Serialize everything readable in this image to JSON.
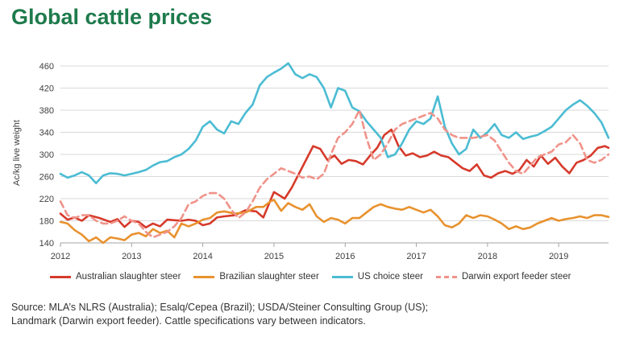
{
  "title": "Global cattle prices",
  "source_lines": [
    "Source: MLA’s NLRS (Australia); Esalq/Cepea (Brazil); USDA/Steiner Consulting Group (US);",
    "Landmark (Darwin export feeder). Cattle specifications vary between indicators."
  ],
  "chart_data": {
    "type": "line",
    "title": "Global cattle prices",
    "ylabel": "Ac/kg live weight",
    "xlabel": "",
    "ylim": [
      140,
      460
    ],
    "yticks": [
      140,
      180,
      220,
      260,
      300,
      340,
      380,
      420,
      460
    ],
    "xlim": [
      2012,
      2019.7
    ],
    "xticks": [
      2012,
      2013,
      2014,
      2015,
      2016,
      2017,
      2018,
      2019
    ],
    "grid": "horizontal",
    "legend_position": "bottom",
    "series": [
      {
        "name": "Australian slaughter steer",
        "color": "#d63a2b",
        "dash": false,
        "x": [
          2012.0,
          2012.1,
          2012.2,
          2012.3,
          2012.4,
          2012.55,
          2012.7,
          2012.8,
          2012.9,
          2013.0,
          2013.1,
          2013.2,
          2013.3,
          2013.4,
          2013.5,
          2013.6,
          2013.7,
          2013.8,
          2013.9,
          2014.0,
          2014.1,
          2014.2,
          2014.3,
          2014.45,
          2014.6,
          2014.75,
          2014.85,
          2014.95,
          2015.0,
          2015.05,
          2015.15,
          2015.25,
          2015.35,
          2015.45,
          2015.55,
          2015.65,
          2015.75,
          2015.85,
          2015.95,
          2016.05,
          2016.15,
          2016.25,
          2016.35,
          2016.45,
          2016.55,
          2016.65,
          2016.75,
          2016.85,
          2016.95,
          2017.05,
          2017.15,
          2017.25,
          2017.35,
          2017.45,
          2017.55,
          2017.65,
          2017.75,
          2017.85,
          2017.95,
          2018.05,
          2018.15,
          2018.25,
          2018.35,
          2018.45,
          2018.55,
          2018.65,
          2018.75,
          2018.85,
          2018.95,
          2019.05,
          2019.15,
          2019.25,
          2019.35,
          2019.45,
          2019.55,
          2019.65,
          2019.7
        ],
        "values": [
          193,
          182,
          186,
          180,
          190,
          185,
          178,
          183,
          169,
          180,
          178,
          168,
          175,
          170,
          182,
          181,
          180,
          182,
          180,
          172,
          175,
          186,
          188,
          190,
          199,
          197,
          186,
          217,
          232,
          228,
          220,
          240,
          265,
          290,
          315,
          310,
          290,
          298,
          283,
          290,
          288,
          282,
          298,
          312,
          335,
          345,
          315,
          298,
          302,
          295,
          298,
          305,
          298,
          295,
          285,
          275,
          270,
          282,
          262,
          258,
          266,
          270,
          265,
          272,
          290,
          278,
          298,
          283,
          294,
          278,
          266,
          285,
          290,
          298,
          312,
          315,
          312
        ]
      },
      {
        "name": "Brazilian slaughter steer",
        "color": "#e8922e",
        "dash": false,
        "x": [
          2012.0,
          2012.1,
          2012.2,
          2012.3,
          2012.4,
          2012.5,
          2012.6,
          2012.7,
          2012.8,
          2012.9,
          2013.0,
          2013.1,
          2013.2,
          2013.3,
          2013.4,
          2013.5,
          2013.6,
          2013.7,
          2013.8,
          2013.9,
          2014.0,
          2014.1,
          2014.2,
          2014.3,
          2014.45,
          2014.6,
          2014.75,
          2014.85,
          2014.95,
          2015.0,
          2015.1,
          2015.2,
          2015.3,
          2015.4,
          2015.5,
          2015.6,
          2015.7,
          2015.8,
          2015.9,
          2016.0,
          2016.1,
          2016.2,
          2016.3,
          2016.4,
          2016.5,
          2016.6,
          2016.7,
          2016.8,
          2016.9,
          2017.0,
          2017.1,
          2017.2,
          2017.3,
          2017.4,
          2017.5,
          2017.6,
          2017.7,
          2017.8,
          2017.9,
          2018.0,
          2018.1,
          2018.2,
          2018.3,
          2018.4,
          2018.5,
          2018.6,
          2018.7,
          2018.8,
          2018.9,
          2019.0,
          2019.1,
          2019.2,
          2019.3,
          2019.4,
          2019.5,
          2019.6,
          2019.7
        ],
        "values": [
          178,
          175,
          163,
          155,
          143,
          150,
          140,
          150,
          148,
          145,
          155,
          158,
          152,
          165,
          158,
          162,
          150,
          175,
          170,
          175,
          182,
          185,
          195,
          197,
          193,
          195,
          205,
          205,
          215,
          218,
          198,
          212,
          205,
          200,
          210,
          188,
          178,
          185,
          182,
          175,
          185,
          185,
          195,
          205,
          210,
          205,
          202,
          200,
          205,
          200,
          195,
          200,
          188,
          172,
          168,
          175,
          190,
          185,
          190,
          188,
          182,
          175,
          165,
          170,
          165,
          168,
          175,
          180,
          185,
          180,
          183,
          185,
          188,
          185,
          190,
          190,
          187
        ]
      },
      {
        "name": "US choice steer",
        "color": "#4bbcd3",
        "dash": false,
        "x": [
          2012.0,
          2012.1,
          2012.2,
          2012.3,
          2012.4,
          2012.5,
          2012.6,
          2012.7,
          2012.8,
          2012.9,
          2013.0,
          2013.1,
          2013.2,
          2013.3,
          2013.4,
          2013.5,
          2013.6,
          2013.7,
          2013.8,
          2013.9,
          2014.0,
          2014.1,
          2014.2,
          2014.3,
          2014.4,
          2014.5,
          2014.6,
          2014.7,
          2014.8,
          2014.9,
          2015.0,
          2015.1,
          2015.2,
          2015.3,
          2015.4,
          2015.5,
          2015.6,
          2015.7,
          2015.8,
          2015.9,
          2016.0,
          2016.1,
          2016.2,
          2016.3,
          2016.4,
          2016.5,
          2016.6,
          2016.7,
          2016.8,
          2016.9,
          2017.0,
          2017.1,
          2017.2,
          2017.3,
          2017.4,
          2017.5,
          2017.6,
          2017.7,
          2017.8,
          2017.9,
          2018.0,
          2018.1,
          2018.2,
          2018.3,
          2018.4,
          2018.5,
          2018.6,
          2018.7,
          2018.8,
          2018.9,
          2019.0,
          2019.1,
          2019.2,
          2019.3,
          2019.4,
          2019.5,
          2019.6,
          2019.7
        ],
        "values": [
          265,
          258,
          262,
          268,
          262,
          248,
          262,
          266,
          265,
          262,
          265,
          268,
          272,
          280,
          286,
          288,
          295,
          300,
          310,
          325,
          350,
          360,
          345,
          338,
          360,
          355,
          375,
          390,
          425,
          440,
          448,
          455,
          465,
          445,
          438,
          445,
          440,
          420,
          385,
          420,
          415,
          385,
          378,
          360,
          345,
          330,
          295,
          300,
          320,
          345,
          360,
          355,
          365,
          405,
          350,
          320,
          300,
          310,
          345,
          330,
          340,
          355,
          335,
          330,
          340,
          328,
          332,
          335,
          342,
          350,
          365,
          380,
          390,
          398,
          388,
          375,
          358,
          330
        ]
      },
      {
        "name": "Darwin export feeder steer",
        "color": "#f0938a",
        "dash": true,
        "x": [
          2012.0,
          2012.1,
          2012.2,
          2012.3,
          2012.4,
          2012.5,
          2012.6,
          2012.7,
          2012.8,
          2012.9,
          2013.0,
          2013.1,
          2013.2,
          2013.3,
          2013.4,
          2013.5,
          2013.6,
          2013.7,
          2013.8,
          2013.9,
          2014.0,
          2014.1,
          2014.2,
          2014.3,
          2014.4,
          2014.5,
          2014.6,
          2014.7,
          2014.8,
          2014.9,
          2015.0,
          2015.1,
          2015.2,
          2015.3,
          2015.4,
          2015.5,
          2015.6,
          2015.7,
          2015.8,
          2015.9,
          2016.0,
          2016.1,
          2016.2,
          2016.3,
          2016.4,
          2016.5,
          2016.6,
          2016.7,
          2016.8,
          2016.9,
          2017.0,
          2017.1,
          2017.2,
          2017.3,
          2017.4,
          2017.5,
          2017.6,
          2017.7,
          2017.8,
          2017.9,
          2018.0,
          2018.1,
          2018.2,
          2018.3,
          2018.4,
          2018.5,
          2018.6,
          2018.7,
          2018.8,
          2018.9,
          2019.0,
          2019.1,
          2019.2,
          2019.3,
          2019.4,
          2019.5,
          2019.6,
          2019.7
        ],
        "values": [
          215,
          190,
          185,
          190,
          190,
          180,
          175,
          175,
          180,
          188,
          180,
          175,
          160,
          150,
          155,
          160,
          170,
          185,
          210,
          215,
          225,
          230,
          230,
          220,
          200,
          185,
          195,
          215,
          240,
          255,
          265,
          275,
          270,
          265,
          258,
          260,
          255,
          265,
          300,
          330,
          340,
          355,
          380,
          330,
          290,
          300,
          320,
          345,
          355,
          360,
          365,
          370,
          375,
          365,
          345,
          335,
          330,
          330,
          330,
          332,
          335,
          325,
          305,
          285,
          270,
          265,
          280,
          295,
          300,
          305,
          318,
          322,
          335,
          320,
          290,
          285,
          290,
          300
        ]
      }
    ]
  }
}
